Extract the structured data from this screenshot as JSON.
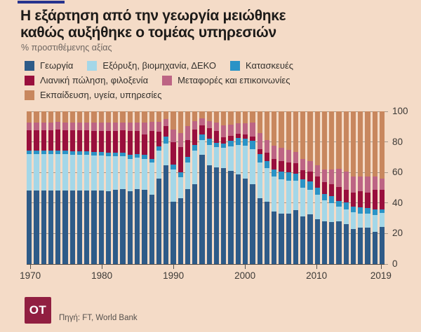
{
  "page": {
    "bg_color": "#f4dbc7",
    "accent_rule_color": "#27338e"
  },
  "header": {
    "title_line1": "Η εξάρτηση από την γεωργία μειώθηκε",
    "title_line2": "καθώς αυξήθηκε ο τομέας υπηρεσιών",
    "subtitle": "% προστιθέμενης αξίας"
  },
  "legend": {
    "rows": [
      [
        0,
        1,
        2
      ],
      [
        3,
        4
      ],
      [
        5
      ]
    ]
  },
  "chart_data": {
    "type": "bar",
    "stacked": true,
    "title": "Η εξάρτηση από την γεωργία μειώθηκε καθώς αυξήθηκε ο τομέας υπηρεσιών",
    "ylabel": "% προστιθέμενης αξίας",
    "ylim": [
      0,
      100
    ],
    "y_ticks": [
      0,
      20,
      40,
      60,
      80,
      100
    ],
    "x_ticks": [
      1970,
      1980,
      1990,
      2000,
      2010,
      2019
    ],
    "grid": true,
    "legend_position": "top",
    "x": [
      1970,
      1971,
      1972,
      1973,
      1974,
      1975,
      1976,
      1977,
      1978,
      1979,
      1980,
      1981,
      1982,
      1983,
      1984,
      1985,
      1986,
      1987,
      1988,
      1989,
      1990,
      1991,
      1992,
      1993,
      1994,
      1995,
      1996,
      1997,
      1998,
      1999,
      2000,
      2001,
      2002,
      2003,
      2004,
      2005,
      2006,
      2007,
      2008,
      2009,
      2010,
      2011,
      2012,
      2013,
      2014,
      2015,
      2016,
      2017,
      2018,
      2019
    ],
    "series": [
      {
        "name": "Γεωργία",
        "color": "#2e5b88",
        "values": [
          48,
          48,
          48,
          48,
          48,
          48,
          48,
          48,
          48,
          48,
          48,
          47.5,
          48.5,
          49,
          47.5,
          49,
          48.5,
          45.5,
          56,
          64.5,
          41,
          43,
          49,
          52.5,
          71.5,
          64.5,
          63.5,
          63,
          61,
          58.5,
          56,
          52.5,
          43,
          41,
          34.5,
          33,
          33,
          35.5,
          31,
          32.5,
          29.5,
          28,
          27.5,
          28,
          26,
          23,
          24,
          24,
          21,
          24.5
        ]
      },
      {
        "name": "Εξόρυξη, βιομηχανία, ΔΕΚΟ",
        "color": "#a4d7e8",
        "values": [
          24,
          24,
          24,
          24,
          24,
          24,
          23.5,
          23.5,
          23.5,
          23,
          23,
          23,
          22,
          21.5,
          21.5,
          20.5,
          20.5,
          21,
          18.5,
          14.5,
          21,
          14,
          17.5,
          22,
          9.5,
          13.5,
          13,
          13,
          16,
          19.5,
          21.5,
          22.5,
          23.5,
          22,
          23,
          22.5,
          21.5,
          19,
          19,
          16,
          16,
          13.5,
          12.5,
          9.5,
          10,
          11,
          9,
          9,
          11,
          9
        ]
      },
      {
        "name": "Κατασκευές",
        "color": "#2a93c6",
        "values": [
          2.5,
          2.5,
          2.5,
          2.5,
          2.5,
          2.5,
          2.5,
          2.5,
          2.5,
          2.5,
          2.5,
          2.5,
          2.5,
          2.5,
          2.5,
          2.5,
          2.5,
          2.5,
          2.5,
          4.5,
          3,
          3,
          3.5,
          3.5,
          4,
          4,
          3,
          3,
          3.5,
          4.5,
          4.5,
          5.5,
          5.5,
          4.5,
          4.5,
          5,
          5.5,
          4.5,
          5.5,
          5.5,
          4.5,
          4.5,
          4.5,
          4,
          4.5,
          3.5,
          4,
          3.5,
          4,
          2.5
        ]
      },
      {
        "name": "Λιανική πώληση, φιλοξενία",
        "color": "#990f3d",
        "values": [
          13,
          13,
          13,
          13,
          13.5,
          13,
          13.5,
          13.5,
          13.5,
          13.5,
          13.5,
          14,
          14,
          14.5,
          15.5,
          15,
          13.5,
          18,
          9.5,
          7,
          15,
          16.5,
          11,
          10,
          6,
          7,
          7.5,
          4,
          3.5,
          3,
          3,
          3,
          3,
          5.5,
          7,
          7,
          6.5,
          7,
          6,
          6.5,
          7.5,
          7.5,
          8,
          9,
          8,
          9.5,
          10.5,
          10.5,
          12.5,
          12.5
        ]
      },
      {
        "name": "Μεταφορές και επικοινωνίες",
        "color": "#bd6484",
        "values": [
          5,
          5,
          5,
          5,
          5,
          5,
          5,
          5,
          5,
          5.5,
          5.5,
          5.5,
          5.5,
          5,
          5.5,
          5.5,
          7.5,
          6,
          6.5,
          4.5,
          8,
          9.5,
          9.5,
          5.5,
          4.5,
          4.5,
          5.5,
          8,
          7.5,
          6.5,
          7,
          9,
          11,
          8,
          8.5,
          8.5,
          8.5,
          7.5,
          7.5,
          7,
          7,
          8.5,
          9.5,
          12,
          12,
          10.5,
          10,
          10.5,
          9,
          7.5
        ]
      },
      {
        "name": "Εκπαίδευση, υγεία, υπηρεσίες",
        "color": "#c8875e",
        "values": [
          7.5,
          7.5,
          7.5,
          7.5,
          7,
          7.5,
          7.5,
          7.5,
          7.5,
          7.5,
          7.5,
          7.5,
          7.5,
          7.5,
          7.5,
          7.5,
          7.5,
          7,
          7,
          5,
          12,
          14,
          9.5,
          6.5,
          4.5,
          6.5,
          7.5,
          9,
          8.5,
          8,
          8,
          7.5,
          14,
          19,
          22.5,
          24,
          25,
          26.5,
          31,
          32.5,
          35.5,
          38,
          38,
          37.5,
          39.5,
          42.5,
          42.5,
          42.5,
          42.5,
          44
        ]
      }
    ]
  },
  "footer": {
    "logo_text": "OT",
    "logo_color": "#911f41",
    "source": "Πηγή: FT, World Bank"
  }
}
